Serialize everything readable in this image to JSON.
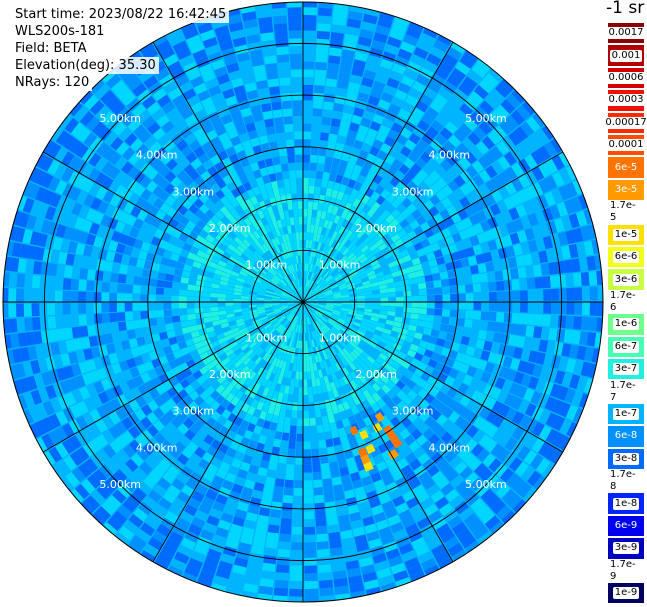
{
  "header": {
    "start_time": "Start time: 2023/08/22 16:42:45",
    "instrument": "WLS200s-181",
    "field": "Field: BETA",
    "elevation": "Elevation(deg): 35.30",
    "nrays": "NRays: 120"
  },
  "colorbar": {
    "unit_title": "-1 sr",
    "levels": [
      {
        "label": "0.0017",
        "color": "#8b0000",
        "label_style": "light"
      },
      {
        "label": "0.001",
        "color": "#b00000",
        "label_style": "light"
      },
      {
        "label": "0.0006",
        "color": "#d40000",
        "label_style": "light"
      },
      {
        "label": "0.0003",
        "color": "#ee1100",
        "label_style": "light"
      },
      {
        "label": "0.00017",
        "color": "#ff2a00",
        "label_style": "light"
      },
      {
        "label": "0.0001",
        "color": "#ff4d00",
        "label_style": "light"
      },
      {
        "label": "6e-5",
        "color": "#ff7400",
        "label_style": "dark"
      },
      {
        "label": "3e-5",
        "color": "#ff9a00",
        "label_style": "dark"
      },
      {
        "label": "1.7e-5",
        "color": "#ffbf00",
        "label_style": "light"
      },
      {
        "label": "1e-5",
        "color": "#ffe000",
        "label_style": "light"
      },
      {
        "label": "6e-6",
        "color": "#f2ff1a",
        "label_style": "light"
      },
      {
        "label": "3e-6",
        "color": "#c8ff40",
        "label_style": "light"
      },
      {
        "label": "1.7e-6",
        "color": "#9cff66",
        "label_style": "light"
      },
      {
        "label": "1e-6",
        "color": "#6fff8c",
        "label_style": "light"
      },
      {
        "label": "6e-7",
        "color": "#47ffb4",
        "label_style": "light"
      },
      {
        "label": "3e-7",
        "color": "#20f0e0",
        "label_style": "light"
      },
      {
        "label": "1.7e-7",
        "color": "#00d6ff",
        "label_style": "light"
      },
      {
        "label": "1e-7",
        "color": "#00b4ff",
        "label_style": "light"
      },
      {
        "label": "6e-8",
        "color": "#0090ff",
        "label_style": "dark"
      },
      {
        "label": "3e-8",
        "color": "#006cff",
        "label_style": "light"
      },
      {
        "label": "1.7e-8",
        "color": "#0048ff",
        "label_style": "light"
      },
      {
        "label": "1e-8",
        "color": "#0024ff",
        "label_style": "light"
      },
      {
        "label": "6e-9",
        "color": "#0000f0",
        "label_style": "dark"
      },
      {
        "label": "3e-9",
        "color": "#0000c0",
        "label_style": "light"
      },
      {
        "label": "1.7e-9",
        "color": "#000090",
        "label_style": "light"
      },
      {
        "label": "1e-9",
        "color": "#000060",
        "label_style": "light"
      }
    ]
  },
  "chart_data": {
    "type": "heatmap",
    "projection": "polar-ppi",
    "field": "BETA",
    "nrays": 120,
    "range_rings": [
      {
        "label": "1.00km",
        "range_km": 1
      },
      {
        "label": "2.00km",
        "range_km": 2
      },
      {
        "label": "3.00km",
        "range_km": 3
      },
      {
        "label": "4.00km",
        "range_km": 4
      },
      {
        "label": "5.00km",
        "range_km": 5
      }
    ],
    "max_range_km": 5.8,
    "spoke_angles_deg": [
      0,
      30,
      60,
      90,
      120,
      150,
      180,
      210,
      240,
      270,
      300,
      330
    ],
    "dominant_level": "1e-7",
    "near_field_level": "3e-7",
    "aerosol_plume": {
      "azimuth_deg": [
        145,
        158
      ],
      "range_km": [
        2.6,
        3.4
      ],
      "levels": [
        "6e-5",
        "3e-5",
        "1e-5"
      ]
    }
  }
}
